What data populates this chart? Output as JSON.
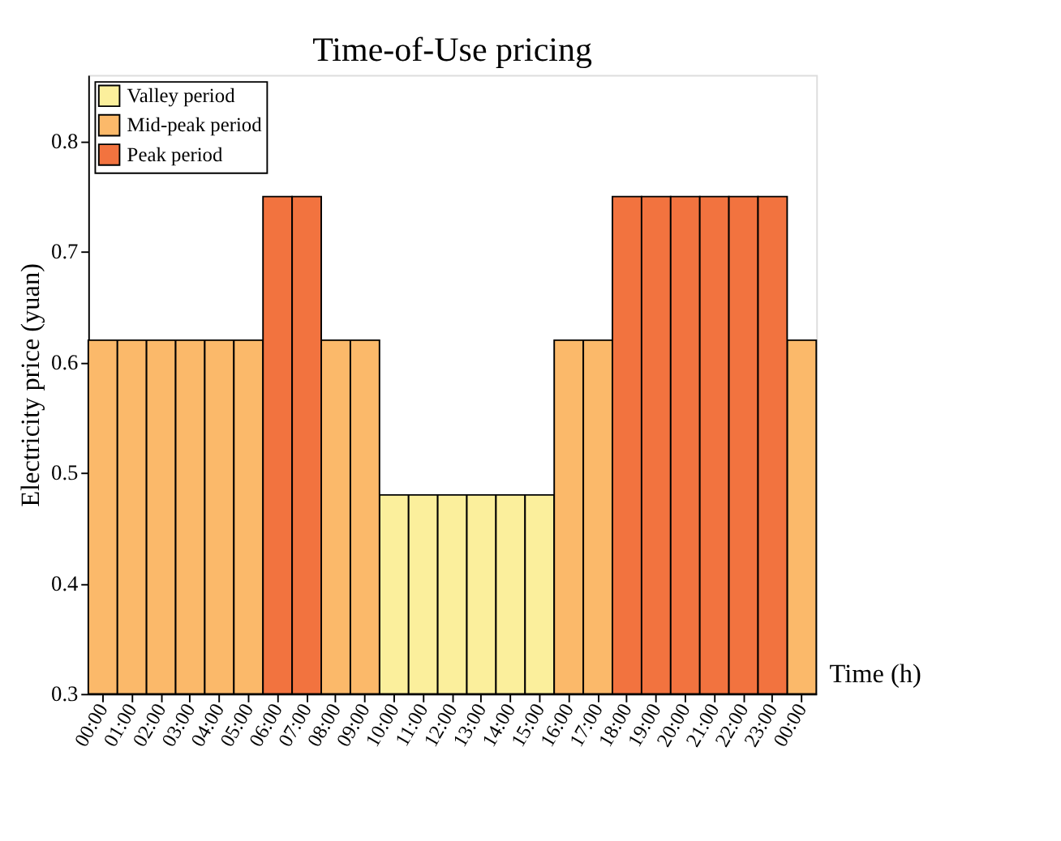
{
  "chart_data": {
    "type": "bar",
    "title": "Time-of-Use pricing",
    "xlabel": "Time (h)",
    "ylabel": "Electricity price (yuan)",
    "categories": [
      "00:00",
      "01:00",
      "02:00",
      "03:00",
      "04:00",
      "05:00",
      "06:00",
      "07:00",
      "08:00",
      "09:00",
      "10:00",
      "11:00",
      "12:00",
      "13:00",
      "14:00",
      "15:00",
      "16:00",
      "17:00",
      "18:00",
      "19:00",
      "20:00",
      "21:00",
      "22:00",
      "23:00",
      "00:00"
    ],
    "series": [
      {
        "name": "Valley period",
        "color": "#fbef9c",
        "values": [
          null,
          null,
          null,
          null,
          null,
          null,
          null,
          null,
          null,
          null,
          0.48,
          0.48,
          0.48,
          0.48,
          0.48,
          0.48,
          null,
          null,
          null,
          null,
          null,
          null,
          null,
          null,
          null
        ]
      },
      {
        "name": "Mid-peak period",
        "color": "#fbb96a",
        "values": [
          0.62,
          0.62,
          0.62,
          0.62,
          0.62,
          0.62,
          null,
          null,
          0.62,
          0.62,
          null,
          null,
          null,
          null,
          null,
          null,
          0.62,
          0.62,
          null,
          null,
          null,
          null,
          null,
          null,
          0.62
        ]
      },
      {
        "name": "Peak period",
        "color": "#f2733f",
        "values": [
          null,
          null,
          null,
          null,
          null,
          null,
          0.75,
          0.75,
          null,
          null,
          null,
          null,
          null,
          null,
          null,
          null,
          null,
          null,
          0.75,
          0.75,
          0.75,
          0.75,
          0.75,
          0.75,
          null
        ]
      }
    ],
    "ylim": [
      0.3,
      0.86
    ],
    "yticks": [
      0.3,
      0.4,
      0.5,
      0.6,
      0.7,
      0.8
    ],
    "grid": false,
    "legend": "top left"
  }
}
